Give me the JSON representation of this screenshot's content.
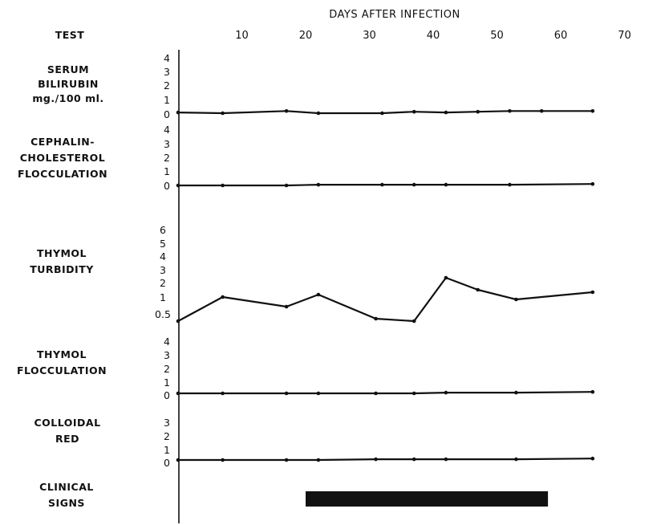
{
  "chart_data": {
    "type": "line",
    "title": "",
    "x_axis": {
      "label": "DAYS AFTER INFECTION",
      "range": [
        0,
        70
      ],
      "ticks": [
        10,
        20,
        30,
        40,
        50,
        60,
        70
      ]
    },
    "row_header": "TEST",
    "panels": [
      {
        "key": "bilirubin",
        "label": [
          "SERUM",
          "BILIRUBIN",
          "mg./100 ml."
        ],
        "y_ticks": [
          "0",
          "1",
          "2",
          "3",
          "4"
        ],
        "series": [
          {
            "x": [
              0,
              7,
              17,
              22,
              32,
              37,
              42,
              47,
              52,
              57,
              65
            ],
            "y": [
              0.05,
              0.0,
              0.15,
              0.0,
              0.0,
              0.1,
              0.05,
              0.1,
              0.15,
              0.15,
              0.15
            ]
          }
        ]
      },
      {
        "key": "cephalin",
        "label": [
          "CEPHALIN-",
          "CHOLESTEROL",
          "FLOCCULATION"
        ],
        "y_ticks": [
          "0",
          "1",
          "2",
          "3",
          "4"
        ],
        "series": [
          {
            "x": [
              0,
              7,
              17,
              22,
              32,
              37,
              42,
              52,
              65
            ],
            "y": [
              0,
              0,
              0,
              0.05,
              0.05,
              0.05,
              0.05,
              0.05,
              0.1
            ]
          }
        ]
      },
      {
        "key": "thymol_turbidity",
        "label": [
          "THYMOL",
          "TURBIDITY"
        ],
        "y_ticks": [
          "0.5",
          "1",
          "2",
          "3",
          "4",
          "5",
          "6"
        ],
        "series": [
          {
            "x": [
              0,
              7,
              17,
              22,
              31,
              37,
              42,
              47,
              53,
              65
            ],
            "y": [
              0.1,
              1.1,
              0.7,
              1.2,
              0.2,
              0.1,
              1.9,
              1.4,
              1.0,
              1.3
            ]
          }
        ]
      },
      {
        "key": "thymol_flocculation",
        "label": [
          "THYMOL",
          "FLOCCULATION"
        ],
        "y_ticks": [
          "0",
          "1",
          "2",
          "3",
          "4"
        ],
        "series": [
          {
            "x": [
              0,
              7,
              17,
              22,
              31,
              37,
              42,
              53,
              65
            ],
            "y": [
              0,
              0,
              0,
              0,
              0,
              0,
              0.05,
              0.05,
              0.1
            ]
          }
        ]
      },
      {
        "key": "colloidal_red",
        "label": [
          "COLLOIDAL",
          "RED"
        ],
        "y_ticks": [
          "0",
          "1",
          "2",
          "3"
        ],
        "series": [
          {
            "x": [
              0,
              7,
              17,
              22,
              31,
              37,
              42,
              53,
              65
            ],
            "y": [
              0,
              0,
              0,
              0,
              0.05,
              0.05,
              0.05,
              0.05,
              0.1
            ]
          }
        ]
      },
      {
        "key": "clinical",
        "label": [
          "CLINICAL",
          "SIGNS"
        ],
        "y_ticks": [],
        "bar": {
          "start": 20,
          "end": 58
        }
      }
    ]
  }
}
